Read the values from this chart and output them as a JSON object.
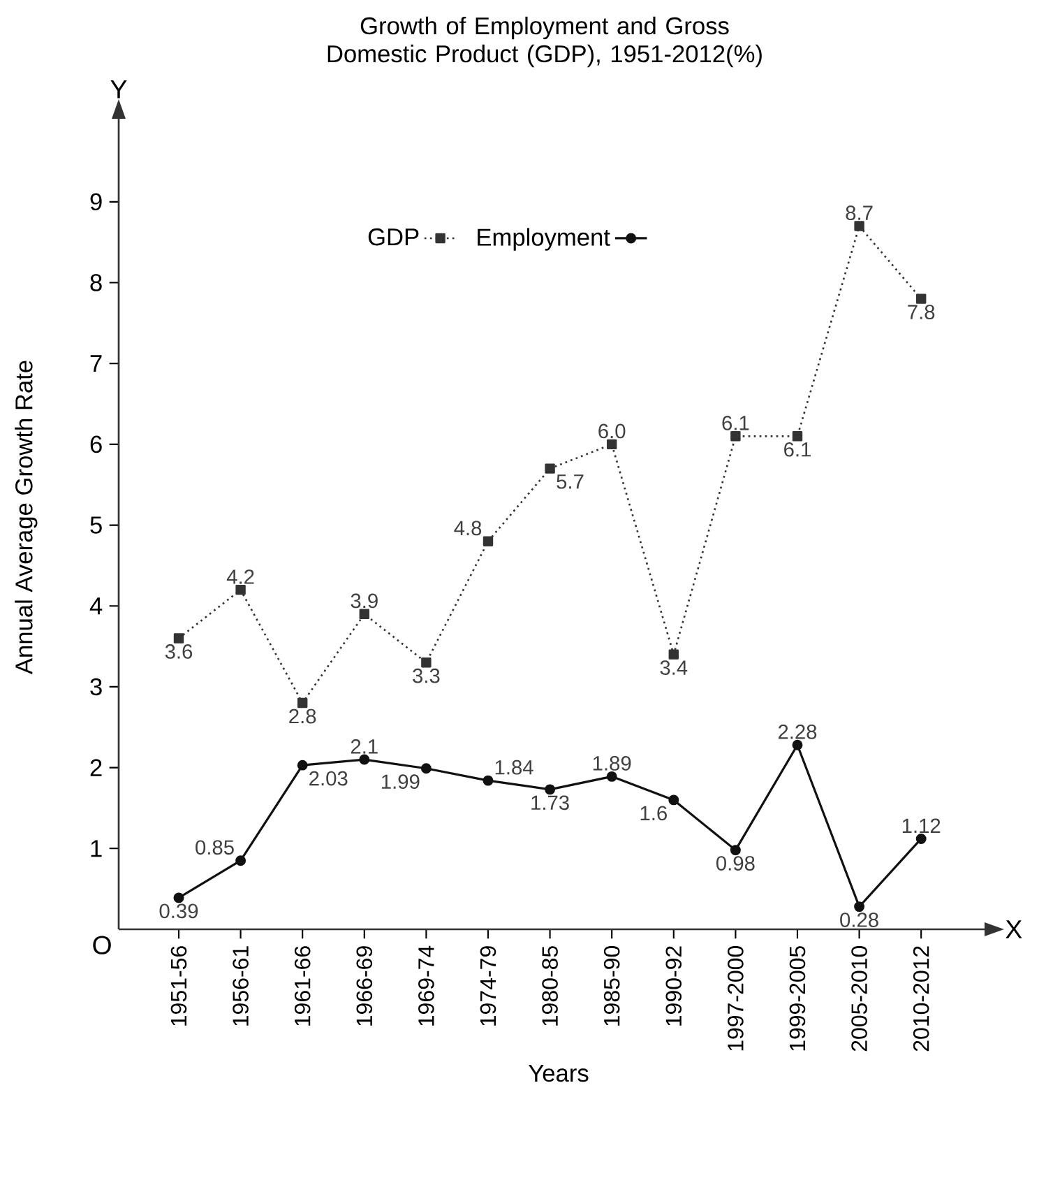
{
  "chart_data": {
    "type": "line",
    "title": "Growth of Employment and Gross Domestic Product (GDP), 1951-2012(%)",
    "xlabel": "Years",
    "ylabel": "Annual Average Growth Rate",
    "categories": [
      "1951-56",
      "1956-61",
      "1961-66",
      "1966-69",
      "1969-74",
      "1974-79",
      "1980-85",
      "1985-90",
      "1990-92",
      "1997-2000",
      "1999-2005",
      "2005-2010",
      "2010-2012"
    ],
    "series": [
      {
        "name": "GDP",
        "color": "#333333",
        "marker": "square",
        "line_style": "dotted",
        "values": [
          3.6,
          4.2,
          2.8,
          3.9,
          3.3,
          4.8,
          5.7,
          6.0,
          3.4,
          6.1,
          6.1,
          8.7,
          7.8
        ],
        "value_labels": [
          "3.6",
          "4.2",
          "2.8",
          "3.9",
          "3.3",
          "4.8",
          "5.7",
          "6.0",
          "3.4",
          "6.1",
          "6.1",
          "8.7",
          "7.8"
        ]
      },
      {
        "name": "Employment",
        "color": "#111111",
        "marker": "circle",
        "line_style": "solid",
        "values": [
          0.39,
          0.85,
          2.03,
          2.1,
          1.99,
          1.84,
          1.73,
          1.89,
          1.6,
          0.98,
          2.28,
          0.28,
          1.12
        ],
        "value_labels": [
          "0.39",
          "0.85",
          "2.03",
          "2.1",
          "1.99",
          "1.84",
          "1.73",
          "1.89",
          "1.6",
          "0.98",
          "2.28",
          "0.28",
          "1.12"
        ]
      }
    ],
    "ylim": [
      0,
      10.2
    ],
    "yticks": [
      1,
      2,
      3,
      4,
      5,
      6,
      7,
      8,
      9
    ],
    "legend": "top",
    "grid": false,
    "annotations": [
      "O",
      "X",
      "Y"
    ]
  }
}
